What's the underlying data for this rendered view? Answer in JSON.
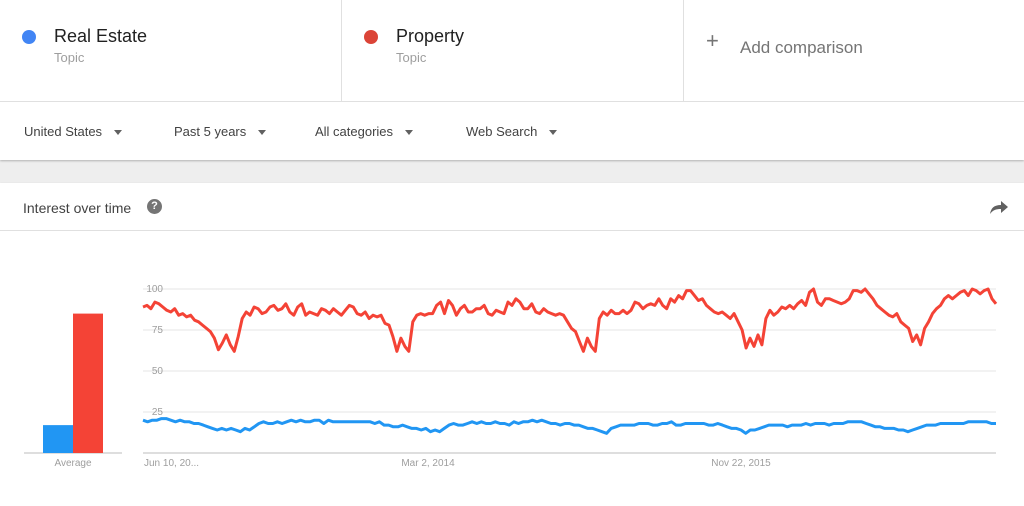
{
  "terms": [
    {
      "name": "Real Estate",
      "type": "Topic",
      "color": "#4285f4"
    },
    {
      "name": "Property",
      "type": "Topic",
      "color": "#db4437"
    }
  ],
  "add_comparison": {
    "label": "Add comparison",
    "icon": "plus-icon"
  },
  "filters": {
    "region": "United States",
    "time": "Past 5 years",
    "category": "All categories",
    "search_type": "Web Search"
  },
  "card": {
    "title": "Interest over time",
    "help_icon": "help-icon",
    "share_icon": "share-icon"
  },
  "chart_data": {
    "type": "line",
    "title": "Interest over time",
    "x_tick_labels": [
      "Jun 10, 20...",
      "Mar 2, 2014",
      "Nov 22, 2015"
    ],
    "y_ticks": [
      25,
      50,
      75,
      100
    ],
    "ylim": [
      0,
      100
    ],
    "grid": true,
    "series": [
      {
        "name": "Property",
        "color": "#f44336",
        "values": [
          89,
          90,
          88,
          92,
          91,
          89,
          87,
          86,
          88,
          84,
          85,
          83,
          84,
          81,
          80,
          78,
          76,
          74,
          70,
          63,
          67,
          72,
          66,
          62,
          71,
          82,
          86,
          84,
          89,
          88,
          85,
          86,
          89,
          90,
          87,
          88,
          91,
          86,
          84,
          89,
          91,
          84,
          86,
          85,
          84,
          88,
          87,
          85,
          88,
          86,
          84,
          87,
          90,
          89,
          85,
          84,
          86,
          82,
          84,
          83,
          84,
          79,
          78,
          71,
          62,
          70,
          65,
          62,
          80,
          84,
          85,
          84,
          85,
          85,
          90,
          92,
          85,
          93,
          90,
          84,
          88,
          90,
          86,
          86,
          88,
          88,
          90,
          85,
          84,
          87,
          86,
          85,
          92,
          90,
          94,
          92,
          88,
          88,
          91,
          86,
          85,
          88,
          86,
          85,
          84,
          85,
          84,
          80,
          76,
          74,
          68,
          62,
          70,
          65,
          62,
          82,
          86,
          84,
          87,
          85,
          85,
          87,
          85,
          87,
          92,
          91,
          88,
          90,
          91,
          90,
          94,
          90,
          88,
          94,
          92,
          96,
          94,
          99,
          99,
          96,
          93,
          94,
          90,
          88,
          86,
          85,
          86,
          84,
          82,
          85,
          80,
          75,
          64,
          70,
          65,
          72,
          66,
          82,
          87,
          84,
          86,
          89,
          88,
          90,
          88,
          91,
          93,
          90,
          98,
          100,
          92,
          90,
          94,
          94,
          93,
          92,
          91,
          92,
          94,
          99,
          99,
          98,
          100,
          97,
          94,
          90,
          88,
          86,
          84,
          83,
          85,
          80,
          78,
          76,
          68,
          72,
          66,
          76,
          80,
          85,
          88,
          90,
          94,
          96,
          94,
          96,
          98,
          99,
          96,
          100,
          99,
          97,
          99,
          100,
          94,
          91
        ]
      },
      {
        "name": "Real Estate",
        "color": "#2196f3",
        "values": [
          20,
          19,
          20,
          20,
          21,
          21,
          20,
          19,
          20,
          19,
          19,
          18,
          18,
          17,
          16,
          15,
          14,
          15,
          14,
          15,
          14,
          13,
          15,
          14,
          16,
          18,
          19,
          18,
          18,
          19,
          18,
          19,
          20,
          19,
          20,
          19,
          19,
          20,
          20,
          18,
          20,
          19,
          19,
          19,
          19,
          19,
          19,
          19,
          19,
          19,
          18,
          19,
          17,
          17,
          16,
          16,
          17,
          16,
          15,
          15,
          14,
          15,
          13,
          14,
          13,
          15,
          17,
          18,
          17,
          17,
          18,
          19,
          18,
          19,
          18,
          18,
          19,
          18,
          18,
          17,
          19,
          18,
          19,
          19,
          20,
          19,
          20,
          19,
          18,
          18,
          17,
          18,
          18,
          17,
          17,
          16,
          15,
          15,
          14,
          13,
          12,
          15,
          16,
          17,
          17,
          17,
          17,
          18,
          18,
          18,
          17,
          17,
          18,
          18,
          19,
          17,
          17,
          18,
          18,
          18,
          18,
          18,
          17,
          17,
          18,
          17,
          16,
          15,
          15,
          14,
          12,
          14,
          14,
          15,
          16,
          17,
          17,
          17,
          17,
          16,
          17,
          17,
          17,
          18,
          17,
          18,
          18,
          18,
          17,
          18,
          18,
          18,
          19,
          19,
          19,
          19,
          18,
          17,
          16,
          16,
          15,
          15,
          15,
          14,
          14,
          13,
          14,
          15,
          16,
          17,
          17,
          17,
          18,
          18,
          18,
          18,
          18,
          18,
          19,
          19,
          19,
          19,
          19,
          18,
          18
        ]
      }
    ],
    "average": {
      "label": "Average",
      "bars": [
        {
          "name": "Real Estate",
          "value": 17,
          "color": "#2196f3"
        },
        {
          "name": "Property",
          "value": 85,
          "color": "#f44336"
        }
      ]
    }
  }
}
